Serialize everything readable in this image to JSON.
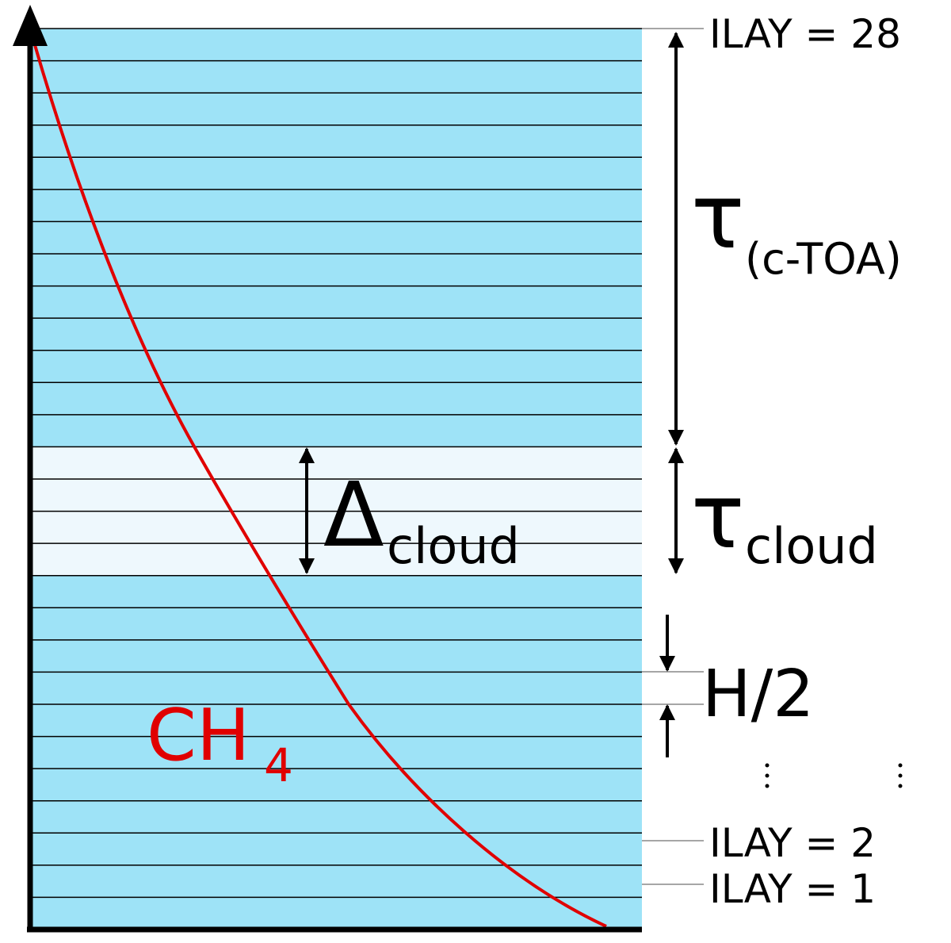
{
  "labels": {
    "top_layer": "ILAY = 28",
    "tau_toa": {
      "symbol": "τ",
      "subscript": "(c-TOA)"
    },
    "delta_cloud": {
      "symbol": "Δ",
      "subscript": "cloud"
    },
    "tau_cloud": {
      "symbol": "τ",
      "subscript": "cloud"
    },
    "half_height": "H/2",
    "gas": {
      "symbol": "CH",
      "subscript": "4"
    },
    "layer_2": "ILAY = 2",
    "layer_1": "ILAY = 1"
  }
}
